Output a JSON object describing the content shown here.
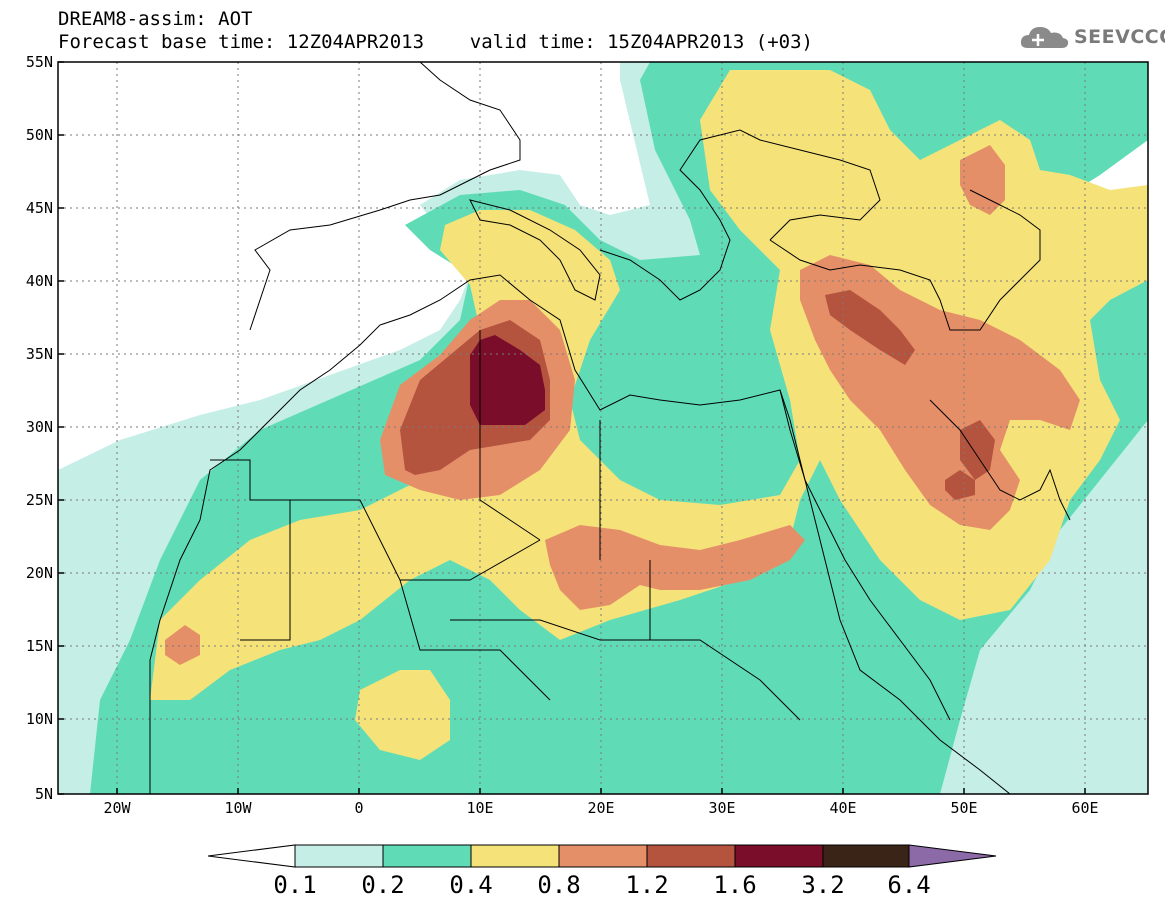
{
  "header": {
    "title": "DREAM8-assim: AOT",
    "subtitle": "Forecast base time: 12Z04APR2013    valid time: 15Z04APR2013 (+03)",
    "logo_text": "SEEVCCC",
    "logo_icon": "cloud-icon"
  },
  "map": {
    "latitude_labels": [
      "55N",
      "50N",
      "45N",
      "40N",
      "35N",
      "30N",
      "25N",
      "20N",
      "15N",
      "10N",
      "5N"
    ],
    "longitude_labels": [
      "20W",
      "10W",
      "0",
      "10E",
      "20E",
      "30E",
      "40E",
      "50E",
      "60E"
    ],
    "background_color": "#ffffff",
    "coastline_color": "#000000"
  },
  "legend": {
    "thresholds": [
      "0.1",
      "0.2",
      "0.4",
      "0.8",
      "1.2",
      "1.6",
      "3.2",
      "6.4"
    ],
    "colors": [
      "#ffffff",
      "#c4eee6",
      "#5fdcb6",
      "#f5e37a",
      "#e58f68",
      "#b4543f",
      "#7a0d2a",
      "#3a2418",
      "#8c6aa8"
    ]
  }
}
